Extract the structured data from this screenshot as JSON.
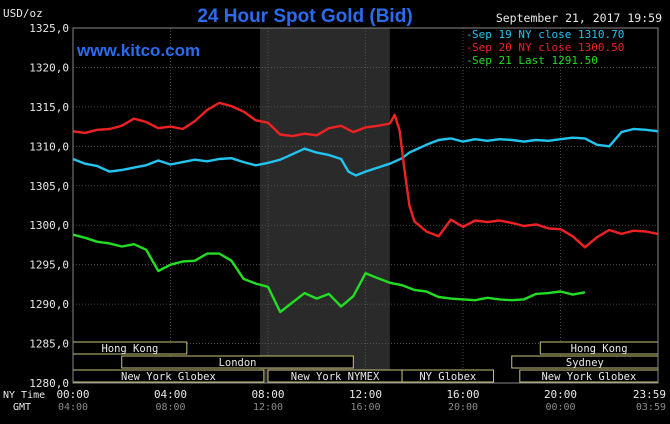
{
  "header": {
    "y_unit": "USD/oz",
    "title": "24 Hour Spot Gold (Bid)",
    "datetime": "September 21, 2017 19:59",
    "brand": "www.kitco.com"
  },
  "legend": [
    {
      "label": "Sep 19 NY close 1310.70",
      "color": "#22c4f0"
    },
    {
      "label": "Sep 20 NY close 1300.50",
      "color": "#ee2222"
    },
    {
      "label": "Sep 21 Last 1291.50",
      "color": "#22dd22"
    }
  ],
  "axis_labels": {
    "ny_time": "NY Time",
    "gmt": "GMT"
  },
  "sessions": [
    {
      "label": "Hong Kong",
      "start": 0,
      "end": 4.67
    },
    {
      "label": "London",
      "start": 2,
      "end": 11.5
    },
    {
      "label": "New York Globex",
      "start": 0,
      "end": 7.83
    },
    {
      "label": "New York NYMEX",
      "start": 8,
      "end": 13.5
    },
    {
      "label": "NY Globex",
      "start": 13.5,
      "end": 17.25
    },
    {
      "label": "Sydney",
      "start": 18,
      "end": 24
    },
    {
      "label": "Hong Kong",
      "start": 19.17,
      "end": 24
    },
    {
      "label": "New York Globex",
      "start": 18.33,
      "end": 24
    }
  ],
  "chart_data": {
    "type": "line",
    "ylim": [
      1280,
      1325
    ],
    "xlim": [
      0,
      24
    ],
    "y_ticks": [
      "1325,0",
      "1320,0",
      "1315,0",
      "1310,0",
      "1305,0",
      "1300,0",
      "1295,0",
      "1290,0",
      "1285,0",
      "1280,0"
    ],
    "x_ticks": [
      {
        "x": 0,
        "ny": "00:00",
        "gmt": "04:00"
      },
      {
        "x": 4,
        "ny": "04:00",
        "gmt": "08:00"
      },
      {
        "x": 8,
        "ny": "08:00",
        "gmt": "12:00"
      },
      {
        "x": 12,
        "ny": "12:00",
        "gmt": "16:00"
      },
      {
        "x": 16,
        "ny": "16:00",
        "gmt": "20:00"
      },
      {
        "x": 20,
        "ny": "20:00",
        "gmt": "00:00"
      },
      {
        "x": 24,
        "ny": "23:59",
        "gmt": "03:59"
      }
    ],
    "shaded_x": [
      7.67,
      13.0
    ],
    "grid": true,
    "series": [
      {
        "name": "Sep 19",
        "color": "#22c4f0",
        "x": [
          0,
          0.5,
          1.0,
          1.5,
          2.0,
          2.5,
          3.0,
          3.5,
          4.0,
          4.5,
          5.0,
          5.5,
          6.0,
          6.5,
          7.0,
          7.5,
          8.0,
          8.5,
          9.0,
          9.5,
          10.0,
          10.5,
          11.0,
          11.3,
          11.6,
          12.0,
          12.5,
          13.0,
          13.5,
          13.8,
          14.0,
          14.5,
          15.0,
          15.5,
          16.0,
          16.5,
          17.0,
          17.5,
          18.0,
          18.5,
          19.0,
          19.5,
          20.0,
          20.5,
          21.0,
          21.5,
          22.0,
          22.5,
          23.0,
          23.5,
          24.0
        ],
        "y": [
          1308.4,
          1307.8,
          1307.5,
          1306.8,
          1307.0,
          1307.3,
          1307.6,
          1308.2,
          1307.7,
          1308.0,
          1308.3,
          1308.1,
          1308.4,
          1308.5,
          1308.0,
          1307.6,
          1307.9,
          1308.3,
          1309.0,
          1309.7,
          1309.2,
          1308.9,
          1308.4,
          1306.8,
          1306.3,
          1306.8,
          1307.3,
          1307.8,
          1308.5,
          1309.2,
          1309.5,
          1310.2,
          1310.8,
          1311.0,
          1310.6,
          1310.9,
          1310.7,
          1310.9,
          1310.8,
          1310.6,
          1310.8,
          1310.7,
          1310.9,
          1311.1,
          1311.0,
          1310.2,
          1310.0,
          1311.8,
          1312.2,
          1312.1,
          1311.9
        ]
      },
      {
        "name": "Sep 20",
        "color": "#ee2222",
        "x": [
          0,
          0.5,
          1.0,
          1.5,
          2.0,
          2.5,
          3.0,
          3.5,
          4.0,
          4.5,
          5.0,
          5.5,
          6.0,
          6.5,
          7.0,
          7.5,
          8.0,
          8.5,
          9.0,
          9.5,
          10.0,
          10.5,
          11.0,
          11.5,
          12.0,
          12.5,
          13.0,
          13.2,
          13.4,
          13.6,
          13.8,
          14.0,
          14.5,
          15.0,
          15.5,
          16.0,
          16.5,
          17.0,
          17.5,
          18.0,
          18.5,
          19.0,
          19.5,
          20.0,
          20.5,
          21.0,
          21.5,
          22.0,
          22.5,
          23.0,
          23.5,
          24.0
        ],
        "y": [
          1311.9,
          1311.7,
          1312.1,
          1312.2,
          1312.6,
          1313.5,
          1313.1,
          1312.3,
          1312.5,
          1312.2,
          1313.2,
          1314.6,
          1315.5,
          1315.1,
          1314.4,
          1313.3,
          1313.0,
          1311.5,
          1311.3,
          1311.6,
          1311.4,
          1312.3,
          1312.6,
          1311.8,
          1312.4,
          1312.6,
          1312.9,
          1314.0,
          1312.0,
          1307.0,
          1302.5,
          1300.5,
          1299.2,
          1298.6,
          1300.7,
          1299.8,
          1300.6,
          1300.4,
          1300.6,
          1300.3,
          1299.9,
          1300.1,
          1299.6,
          1299.5,
          1298.6,
          1297.2,
          1298.5,
          1299.4,
          1298.9,
          1299.3,
          1299.2,
          1298.9
        ]
      },
      {
        "name": "Sep 21",
        "color": "#22dd22",
        "x": [
          0,
          0.5,
          1.0,
          1.5,
          2.0,
          2.5,
          3.0,
          3.5,
          4.0,
          4.5,
          5.0,
          5.5,
          6.0,
          6.5,
          7.0,
          7.5,
          8.0,
          8.5,
          9.0,
          9.5,
          10.0,
          10.5,
          11.0,
          11.5,
          12.0,
          12.5,
          13.0,
          13.5,
          14.0,
          14.5,
          15.0,
          15.5,
          16.0,
          16.5,
          17.0,
          17.5,
          18.0,
          18.5,
          19.0,
          19.5,
          20.0,
          20.5,
          21.0
        ],
        "y": [
          1298.8,
          1298.4,
          1297.9,
          1297.7,
          1297.3,
          1297.6,
          1296.9,
          1294.2,
          1295.0,
          1295.4,
          1295.5,
          1296.4,
          1296.4,
          1295.5,
          1293.2,
          1292.6,
          1292.2,
          1289.0,
          1290.2,
          1291.4,
          1290.7,
          1291.3,
          1289.7,
          1291.0,
          1293.9,
          1293.3,
          1292.7,
          1292.4,
          1291.8,
          1291.6,
          1290.9,
          1290.7,
          1290.6,
          1290.5,
          1290.8,
          1290.6,
          1290.5,
          1290.6,
          1291.3,
          1291.4,
          1291.6,
          1291.2,
          1291.5
        ]
      }
    ]
  }
}
